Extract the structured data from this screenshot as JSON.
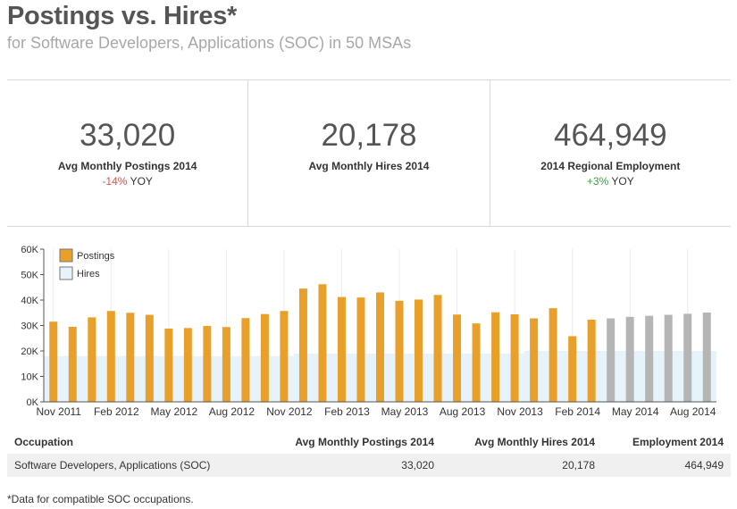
{
  "header": {
    "title": "Postings vs. Hires*",
    "subtitle": "for Software Developers, Applications (SOC) in 50 MSAs"
  },
  "kpis": [
    {
      "value": "33,020",
      "label": "Avg Monthly Postings 2014",
      "change": "-14%",
      "change_suffix": "YOY",
      "change_color": "#d9534f"
    },
    {
      "value": "20,178",
      "label": "Avg Monthly Hires 2014",
      "change": "",
      "change_suffix": "",
      "change_color": ""
    },
    {
      "value": "464,949",
      "label": "2014 Regional Employment",
      "change": "+3%",
      "change_suffix": "YOY",
      "change_color": "#3ca04a"
    }
  ],
  "chart_data": {
    "type": "bar",
    "ylim": [
      0,
      60000
    ],
    "yticks": [
      0,
      10000,
      20000,
      30000,
      40000,
      50000,
      60000
    ],
    "ytick_labels": [
      "0K",
      "10K",
      "20K",
      "30K",
      "40K",
      "50K",
      "60K"
    ],
    "xtick_labels": [
      "Nov 2011",
      "Feb 2012",
      "May 2012",
      "Aug 2012",
      "Nov 2012",
      "Feb 2013",
      "May 2013",
      "Aug 2013",
      "Nov 2013",
      "Feb 2014",
      "May 2014",
      "Aug 2014"
    ],
    "legend": {
      "position": "top-left",
      "entries": [
        "Postings",
        "Hires"
      ]
    },
    "colors": {
      "postings": "#e8a02a",
      "postings_projected": "#b5b5b5",
      "hires": "#e6f3fa"
    },
    "categories": [
      "Nov 2011",
      "Dec 2011",
      "Jan 2012",
      "Feb 2012",
      "Mar 2012",
      "Apr 2012",
      "May 2012",
      "Jun 2012",
      "Jul 2012",
      "Aug 2012",
      "Sep 2012",
      "Oct 2012",
      "Nov 2012",
      "Dec 2012",
      "Jan 2013",
      "Feb 2013",
      "Mar 2013",
      "Apr 2013",
      "May 2013",
      "Jun 2013",
      "Jul 2013",
      "Aug 2013",
      "Sep 2013",
      "Oct 2013",
      "Nov 2013",
      "Dec 2013",
      "Jan 2014",
      "Feb 2014",
      "Mar 2014",
      "Apr 2014",
      "May 2014",
      "Jun 2014",
      "Jul 2014",
      "Aug 2014",
      "Sep 2014"
    ],
    "series": [
      {
        "name": "Postings",
        "values": [
          31500,
          29500,
          33200,
          35700,
          35000,
          34200,
          28800,
          29000,
          29800,
          29400,
          32900,
          34500,
          35700,
          44500,
          46200,
          41200,
          41000,
          43000,
          39700,
          40200,
          42000,
          34300,
          30800,
          35200,
          34400,
          32800,
          36800,
          25800,
          32300,
          32800,
          33400,
          33800,
          34200,
          34600,
          35100
        ],
        "projected_from_index": 29
      },
      {
        "name": "Hires",
        "values": [
          18000,
          18000,
          18000,
          18000,
          18000,
          18000,
          18000,
          18000,
          18000,
          18000,
          18000,
          18000,
          18000,
          19000,
          19000,
          19000,
          19000,
          19000,
          19000,
          19000,
          19000,
          19000,
          19000,
          19000,
          19000,
          20000,
          20000,
          20000,
          20000,
          20000,
          20000,
          20000,
          20000,
          20000,
          20000
        ]
      }
    ]
  },
  "table": {
    "headers": [
      "Occupation",
      "Avg Monthly Postings 2014",
      "Avg Monthly Hires 2014",
      "Employment 2014"
    ],
    "rows": [
      [
        "Software Developers, Applications (SOC)",
        "33,020",
        "20,178",
        "464,949"
      ]
    ]
  },
  "footnote": "*Data for compatible SOC occupations."
}
